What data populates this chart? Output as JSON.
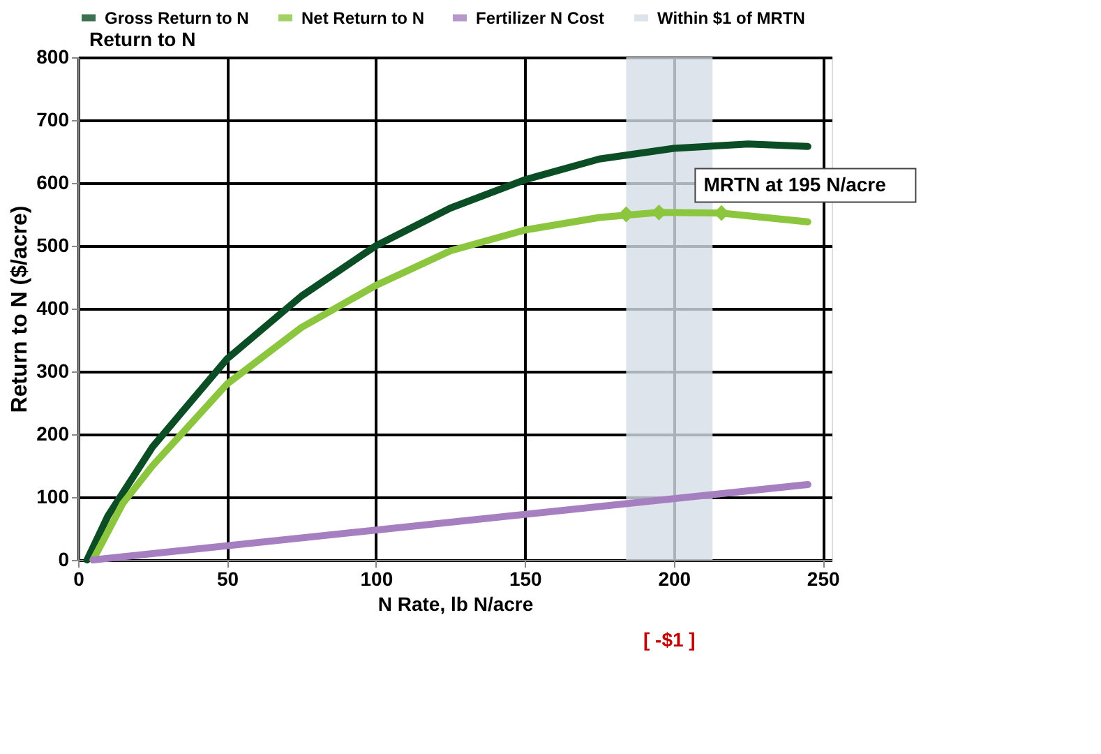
{
  "chart_data": {
    "type": "line",
    "xlabel": "N Rate, lb N/acre",
    "ylabel": "Return to N ($/acre)",
    "series": [
      {
        "name": "Gross Return to N",
        "color": "#0b4d25",
        "x": [
          3,
          10,
          25,
          50,
          75,
          100,
          125,
          150,
          175,
          200,
          225,
          245
        ],
        "values": [
          0,
          70,
          180,
          320,
          420,
          500,
          560,
          605,
          638,
          655,
          662,
          658
        ]
      },
      {
        "name": "Net Return to N",
        "color": "#8cc63f",
        "x": [
          5,
          15,
          25,
          50,
          75,
          100,
          125,
          150,
          175,
          195,
          216,
          245
        ],
        "values": [
          0,
          90,
          150,
          280,
          370,
          437,
          492,
          525,
          545,
          553,
          552,
          538
        ]
      },
      {
        "name": "Fertilizer N Cost",
        "color": "#a57fc0",
        "x": [
          5,
          245
        ],
        "values": [
          0,
          120
        ]
      },
      {
        "type": "scatter",
        "marker": "diamond",
        "color": "#8cc63f",
        "x": [
          184,
          195,
          216
        ],
        "values": [
          550,
          553,
          552
        ]
      }
    ],
    "bands": [
      {
        "axis": "x",
        "from": 184,
        "to": 213,
        "label": "Within $1 of MRTN",
        "color": "#d5dde6"
      }
    ],
    "annotations": [
      "Return to N",
      "MRTN at 195 N/acre",
      "[ -$1 ]"
    ],
    "xlim": [
      0,
      253
    ],
    "xticks": [
      0,
      50,
      100,
      150,
      200,
      250
    ],
    "ylim": [
      0,
      800
    ],
    "yticks": [
      0,
      100,
      200,
      300,
      400,
      500,
      600,
      700,
      800
    ],
    "grid": true,
    "legend": "top",
    "line_style": "solid"
  }
}
